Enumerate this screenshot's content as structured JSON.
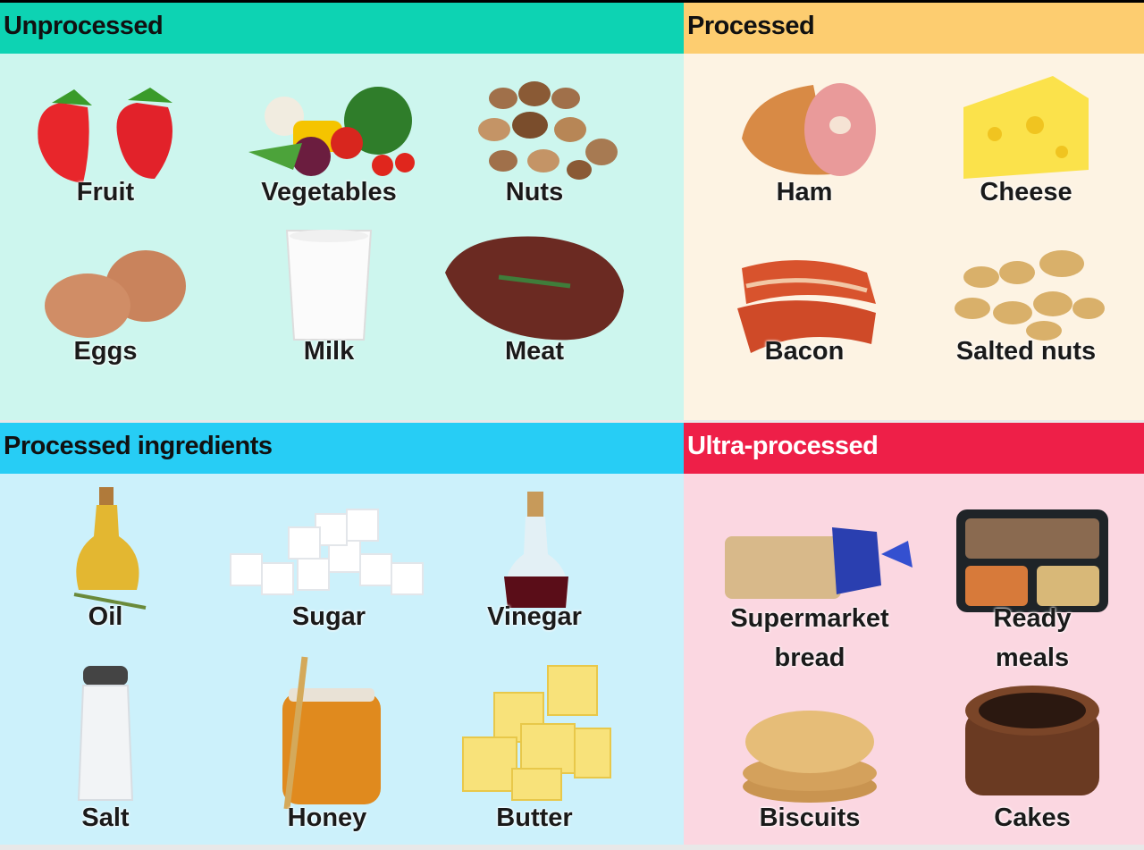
{
  "colors": {
    "unprocessed_header": "#0dd3b3",
    "unprocessed_bg": "#cdf6ee",
    "processed_header": "#fdcd70",
    "processed_bg": "#fdf3e3",
    "ingredients_header": "#27cdf5",
    "ingredients_bg": "#ccf1fb",
    "ultra_header": "#ee1f48",
    "ultra_bg": "#fbd7e1"
  },
  "sections": {
    "unprocessed": {
      "title": "Unprocessed",
      "items": [
        "Fruit",
        "Vegetables",
        "Nuts",
        "Eggs",
        "Milk",
        "Meat"
      ]
    },
    "processed": {
      "title": "Processed",
      "items": [
        "Ham",
        "Cheese",
        "Bacon",
        "Salted nuts"
      ]
    },
    "ingredients": {
      "title": "Processed ingredients",
      "items": [
        "Oil",
        "Sugar",
        "Vinegar",
        "Salt",
        "Honey",
        "Butter"
      ]
    },
    "ultra": {
      "title": "Ultra-processed",
      "items": [
        "Supermarket bread",
        "Ready meals",
        "Biscuits",
        "Cakes"
      ]
    }
  }
}
